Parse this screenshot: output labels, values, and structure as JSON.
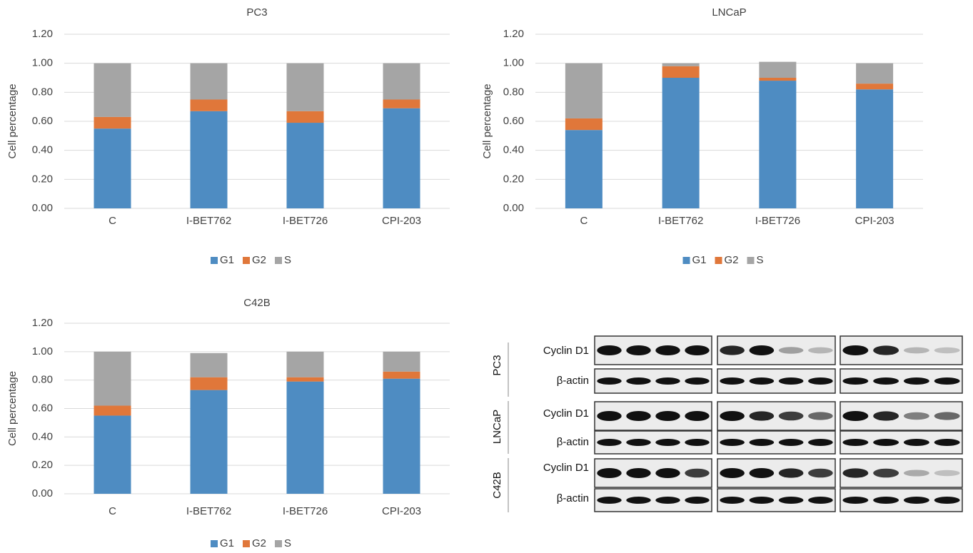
{
  "chart_data": [
    {
      "type": "stacked-bar",
      "title": "PC3",
      "y_label": "Cell percentage",
      "categories": [
        "C",
        "I-BET762",
        "I-BET726",
        "CPI-203"
      ],
      "series": [
        {
          "name": "G1",
          "color": "#4e8cc2",
          "values": [
            0.55,
            0.67,
            0.59,
            0.69
          ]
        },
        {
          "name": "G2",
          "color": "#e0773a",
          "values": [
            0.08,
            0.08,
            0.08,
            0.06
          ]
        },
        {
          "name": "S",
          "color": "#a5a5a5",
          "values": [
            0.37,
            0.25,
            0.33,
            0.25
          ]
        }
      ],
      "ylim": [
        0,
        1.2
      ],
      "yticks": [
        {
          "value": 0,
          "label": "0.00"
        },
        {
          "value": 0.2,
          "label": "0.20"
        },
        {
          "value": 0.4,
          "label": "0.40"
        },
        {
          "value": 0.6,
          "label": "0.60"
        },
        {
          "value": 0.8,
          "label": "0.80"
        },
        {
          "value": 1.0,
          "label": "1.00"
        },
        {
          "value": 1.2,
          "label": "1.20"
        }
      ],
      "grid": true,
      "legend": "bottom"
    },
    {
      "type": "stacked-bar",
      "title": "LNCaP",
      "y_label": "Cell percentage",
      "categories": [
        "C",
        "I-BET762",
        "I-BET726",
        "CPI-203"
      ],
      "series": [
        {
          "name": "G1",
          "color": "#4e8cc2",
          "values": [
            0.54,
            0.9,
            0.88,
            0.82
          ]
        },
        {
          "name": "G2",
          "color": "#e0773a",
          "values": [
            0.08,
            0.08,
            0.02,
            0.04
          ]
        },
        {
          "name": "S",
          "color": "#a5a5a5",
          "values": [
            0.38,
            0.02,
            0.11,
            0.14
          ]
        }
      ],
      "ylim": [
        0,
        1.2
      ],
      "yticks": [
        {
          "value": 0,
          "label": "0.00"
        },
        {
          "value": 0.2,
          "label": "0.20"
        },
        {
          "value": 0.4,
          "label": "0.40"
        },
        {
          "value": 0.6,
          "label": "0.60"
        },
        {
          "value": 0.8,
          "label": "0.80"
        },
        {
          "value": 1.0,
          "label": "1.00"
        },
        {
          "value": 1.2,
          "label": "1.20"
        }
      ],
      "grid": true,
      "legend": "bottom"
    },
    {
      "type": "stacked-bar",
      "title": "C42B",
      "y_label": "Cell percentage",
      "categories": [
        "C",
        "I-BET762",
        "I-BET726",
        "CPI-203"
      ],
      "series": [
        {
          "name": "G1",
          "color": "#4e8cc2",
          "values": [
            0.55,
            0.73,
            0.79,
            0.81
          ]
        },
        {
          "name": "G2",
          "color": "#e0773a",
          "values": [
            0.07,
            0.09,
            0.03,
            0.05
          ]
        },
        {
          "name": "S",
          "color": "#a5a5a5",
          "values": [
            0.38,
            0.17,
            0.18,
            0.14
          ]
        }
      ],
      "ylim": [
        0,
        1.2
      ],
      "yticks": [
        {
          "value": 0,
          "label": "0.00"
        },
        {
          "value": 0.2,
          "label": "0.20"
        },
        {
          "value": 0.4,
          "label": "0.40"
        },
        {
          "value": 0.6,
          "label": "0.60"
        },
        {
          "value": 0.8,
          "label": "0.80"
        },
        {
          "value": 1.0,
          "label": "1.00"
        },
        {
          "value": 1.2,
          "label": "1.20"
        }
      ],
      "grid": true,
      "legend": "bottom"
    }
  ],
  "blot": {
    "groups": [
      "PC3",
      "LNCaP",
      "C42B"
    ],
    "rows": [
      "Cyclin D1",
      "β-actin"
    ]
  }
}
